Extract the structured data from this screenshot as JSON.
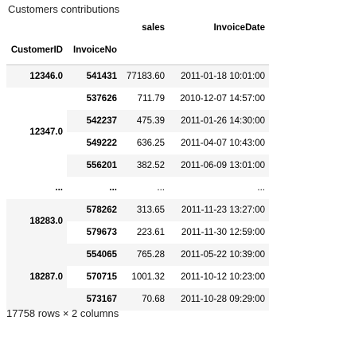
{
  "table": {
    "caption": "Customers contributions",
    "columns": [
      "sales",
      "InvoiceDate"
    ],
    "index_names": [
      "CustomerID",
      "InvoiceNo"
    ],
    "rows": [
      {
        "c": "12346.0",
        "span": 1,
        "inv": "541431",
        "sales": "77183.60",
        "date": "2011-01-18 10:01:00"
      },
      {
        "c": "12347.0",
        "span": 4,
        "inv": "537626",
        "sales": "711.79",
        "date": "2010-12-07 14:57:00"
      },
      {
        "c": null,
        "inv": "542237",
        "sales": "475.39",
        "date": "2011-01-26 14:30:00"
      },
      {
        "c": null,
        "inv": "549222",
        "sales": "636.25",
        "date": "2011-04-07 10:43:00"
      },
      {
        "c": null,
        "inv": "556201",
        "sales": "382.52",
        "date": "2011-06-09 13:01:00"
      },
      {
        "c": "...",
        "span": 1,
        "inv": "...",
        "sales": "...",
        "date": "..."
      },
      {
        "c": "18283.0",
        "span": 2,
        "inv": "578262",
        "sales": "313.65",
        "date": "2011-11-23 13:27:00"
      },
      {
        "c": null,
        "inv": "579673",
        "sales": "223.61",
        "date": "2011-11-30 12:59:00"
      },
      {
        "c": "18287.0",
        "span": 3,
        "inv": "554065",
        "sales": "765.28",
        "date": "2011-05-22 10:39:00"
      },
      {
        "c": null,
        "inv": "570715",
        "sales": "1001.32",
        "date": "2011-10-12 10:23:00"
      },
      {
        "c": null,
        "inv": "573167",
        "sales": "70.68",
        "date": "2011-10-28 09:29:00"
      }
    ]
  },
  "footer": "17758 rows × 2 columns"
}
